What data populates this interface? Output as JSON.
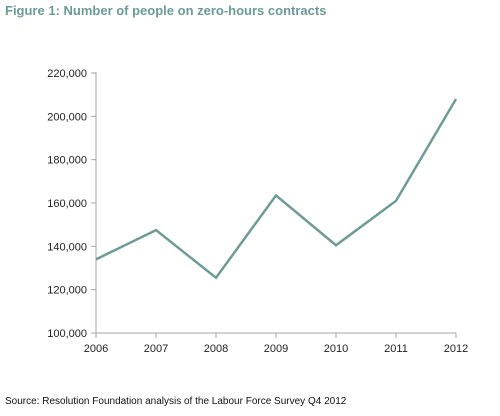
{
  "title": "Figure 1: Number of people on zero-hours contracts",
  "source": "Source: Resolution Foundation analysis of the Labour Force Survey Q4 2012",
  "colors": {
    "title": "#6b9a98",
    "line": "#6f9b97",
    "axis": "#a6a6a6"
  },
  "chart_data": {
    "type": "line",
    "categories": [
      "2006",
      "2007",
      "2008",
      "2009",
      "2010",
      "2011",
      "2012"
    ],
    "values": [
      134000,
      147500,
      125500,
      163500,
      140500,
      161000,
      208000
    ],
    "ylim": [
      100000,
      220000
    ],
    "yticks": [
      100000,
      120000,
      140000,
      160000,
      180000,
      200000,
      220000
    ],
    "ytick_labels": [
      "100,000",
      "120,000",
      "140,000",
      "160,000",
      "180,000",
      "200,000",
      "220,000"
    ],
    "xlabel": "",
    "ylabel": "",
    "grid": false,
    "legend": "none"
  }
}
